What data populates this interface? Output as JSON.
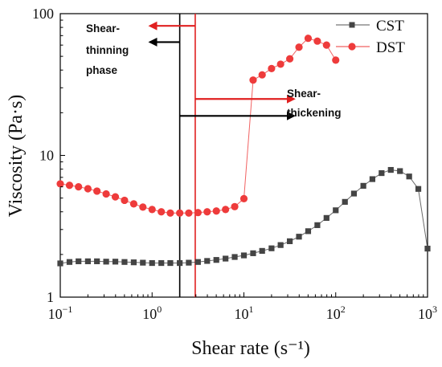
{
  "chart_data": {
    "type": "scatter",
    "title": "",
    "xlabel": "Shear rate (s⁻¹)",
    "ylabel": "Viscosity (Pa·s)",
    "xscale": "log",
    "yscale": "log",
    "xlim": [
      0.1,
      1000
    ],
    "ylim": [
      1,
      100
    ],
    "xticks": [
      {
        "value": 0.1,
        "base": "10",
        "exp": "−1"
      },
      {
        "value": 1,
        "base": "10",
        "exp": "0"
      },
      {
        "value": 10,
        "base": "10",
        "exp": "1"
      },
      {
        "value": 100,
        "base": "10",
        "exp": "2"
      },
      {
        "value": 1000,
        "base": "10",
        "exp": "3"
      }
    ],
    "yticks": [
      {
        "value": 1,
        "label": "1"
      },
      {
        "value": 10,
        "label": "10"
      },
      {
        "value": 100,
        "label": "100"
      }
    ],
    "grid": false,
    "legend": "top-right",
    "series": [
      {
        "name": "CST",
        "color": "#444444",
        "marker": "square",
        "points": [
          [
            0.1,
            1.73
          ],
          [
            0.126,
            1.77
          ],
          [
            0.158,
            1.79
          ],
          [
            0.2,
            1.79
          ],
          [
            0.251,
            1.79
          ],
          [
            0.316,
            1.78
          ],
          [
            0.398,
            1.78
          ],
          [
            0.501,
            1.77
          ],
          [
            0.631,
            1.76
          ],
          [
            0.794,
            1.75
          ],
          [
            1.0,
            1.74
          ],
          [
            1.26,
            1.74
          ],
          [
            1.58,
            1.74
          ],
          [
            2.0,
            1.74
          ],
          [
            2.51,
            1.75
          ],
          [
            3.16,
            1.77
          ],
          [
            3.98,
            1.8
          ],
          [
            5.01,
            1.83
          ],
          [
            6.31,
            1.87
          ],
          [
            7.94,
            1.92
          ],
          [
            10.0,
            1.97
          ],
          [
            12.6,
            2.04
          ],
          [
            15.8,
            2.12
          ],
          [
            20.0,
            2.21
          ],
          [
            25.1,
            2.33
          ],
          [
            31.6,
            2.48
          ],
          [
            39.8,
            2.67
          ],
          [
            50.1,
            2.92
          ],
          [
            63.1,
            3.22
          ],
          [
            79.4,
            3.62
          ],
          [
            100,
            4.1
          ],
          [
            126,
            4.7
          ],
          [
            158,
            5.38
          ],
          [
            200,
            6.1
          ],
          [
            251,
            6.8
          ],
          [
            316,
            7.5
          ],
          [
            398,
            7.9
          ],
          [
            501,
            7.75
          ],
          [
            631,
            7.1
          ],
          [
            794,
            5.8
          ],
          [
            1000,
            2.2
          ]
        ]
      },
      {
        "name": "DST",
        "color": "#ee3b3b",
        "marker": "circle",
        "points": [
          [
            0.1,
            6.3
          ],
          [
            0.126,
            6.15
          ],
          [
            0.158,
            6.0
          ],
          [
            0.2,
            5.82
          ],
          [
            0.251,
            5.6
          ],
          [
            0.316,
            5.35
          ],
          [
            0.398,
            5.1
          ],
          [
            0.501,
            4.82
          ],
          [
            0.631,
            4.55
          ],
          [
            0.794,
            4.32
          ],
          [
            1.0,
            4.15
          ],
          [
            1.26,
            4.0
          ],
          [
            1.58,
            3.92
          ],
          [
            2.0,
            3.92
          ],
          [
            2.51,
            3.92
          ],
          [
            3.16,
            3.95
          ],
          [
            3.98,
            4.0
          ],
          [
            5.01,
            4.05
          ],
          [
            6.31,
            4.15
          ],
          [
            7.94,
            4.35
          ],
          [
            10.0,
            4.95
          ],
          [
            12.6,
            34
          ],
          [
            15.8,
            37
          ],
          [
            20.0,
            41
          ],
          [
            25.1,
            44
          ],
          [
            31.6,
            48
          ],
          [
            39.8,
            58
          ],
          [
            50.1,
            67
          ],
          [
            63.1,
            64
          ],
          [
            79.4,
            60
          ],
          [
            100,
            47
          ]
        ]
      }
    ],
    "reference_lines": [
      {
        "x": 2.0,
        "color": "#000000"
      },
      {
        "x": 2.95,
        "color": "#e02020"
      }
    ],
    "annotations": [
      {
        "id": "thinning",
        "lines": [
          "Shear-",
          "thinning",
          "phase"
        ],
        "arrows": [
          {
            "color": "#e02020",
            "x_from": 2.95,
            "x_to": 0.95,
            "y": 82
          },
          {
            "color": "#000000",
            "x_from": 2.0,
            "x_to": 0.95,
            "y": 63
          }
        ]
      },
      {
        "id": "thickening",
        "lines": [
          "Shear-",
          "thickening"
        ],
        "arrows": [
          {
            "color": "#e02020",
            "x_from": 2.95,
            "x_to": 35,
            "y": 25
          },
          {
            "color": "#000000",
            "x_from": 2.0,
            "x_to": 35,
            "y": 19
          }
        ]
      }
    ]
  }
}
